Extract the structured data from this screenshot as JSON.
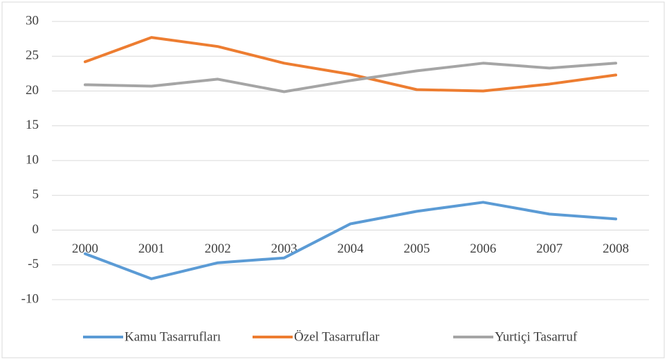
{
  "chart_data": {
    "type": "line",
    "categories": [
      "2000",
      "2001",
      "2002",
      "2003",
      "2004",
      "2005",
      "2006",
      "2007",
      "2008"
    ],
    "series": [
      {
        "name": "Kamu Tasarrufları",
        "color": "#5b9bd5",
        "values": [
          -3.4,
          -7.0,
          -4.7,
          -4.0,
          0.9,
          2.7,
          4.0,
          2.3,
          1.6
        ]
      },
      {
        "name": "Özel Tasarruflar",
        "color": "#ed7d31",
        "values": [
          24.2,
          27.7,
          26.4,
          24.0,
          22.4,
          20.2,
          20.0,
          21.0,
          22.3
        ]
      },
      {
        "name": "Yurtiçi Tasarruf",
        "color": "#a5a5a5",
        "values": [
          20.9,
          20.7,
          21.7,
          19.9,
          21.5,
          22.9,
          24.0,
          23.3,
          24.0
        ]
      }
    ],
    "ylim": [
      -10,
      30
    ],
    "yticks": [
      -10,
      -5,
      0,
      5,
      10,
      15,
      20,
      25,
      30
    ],
    "grid": true,
    "legend": "bottom"
  }
}
